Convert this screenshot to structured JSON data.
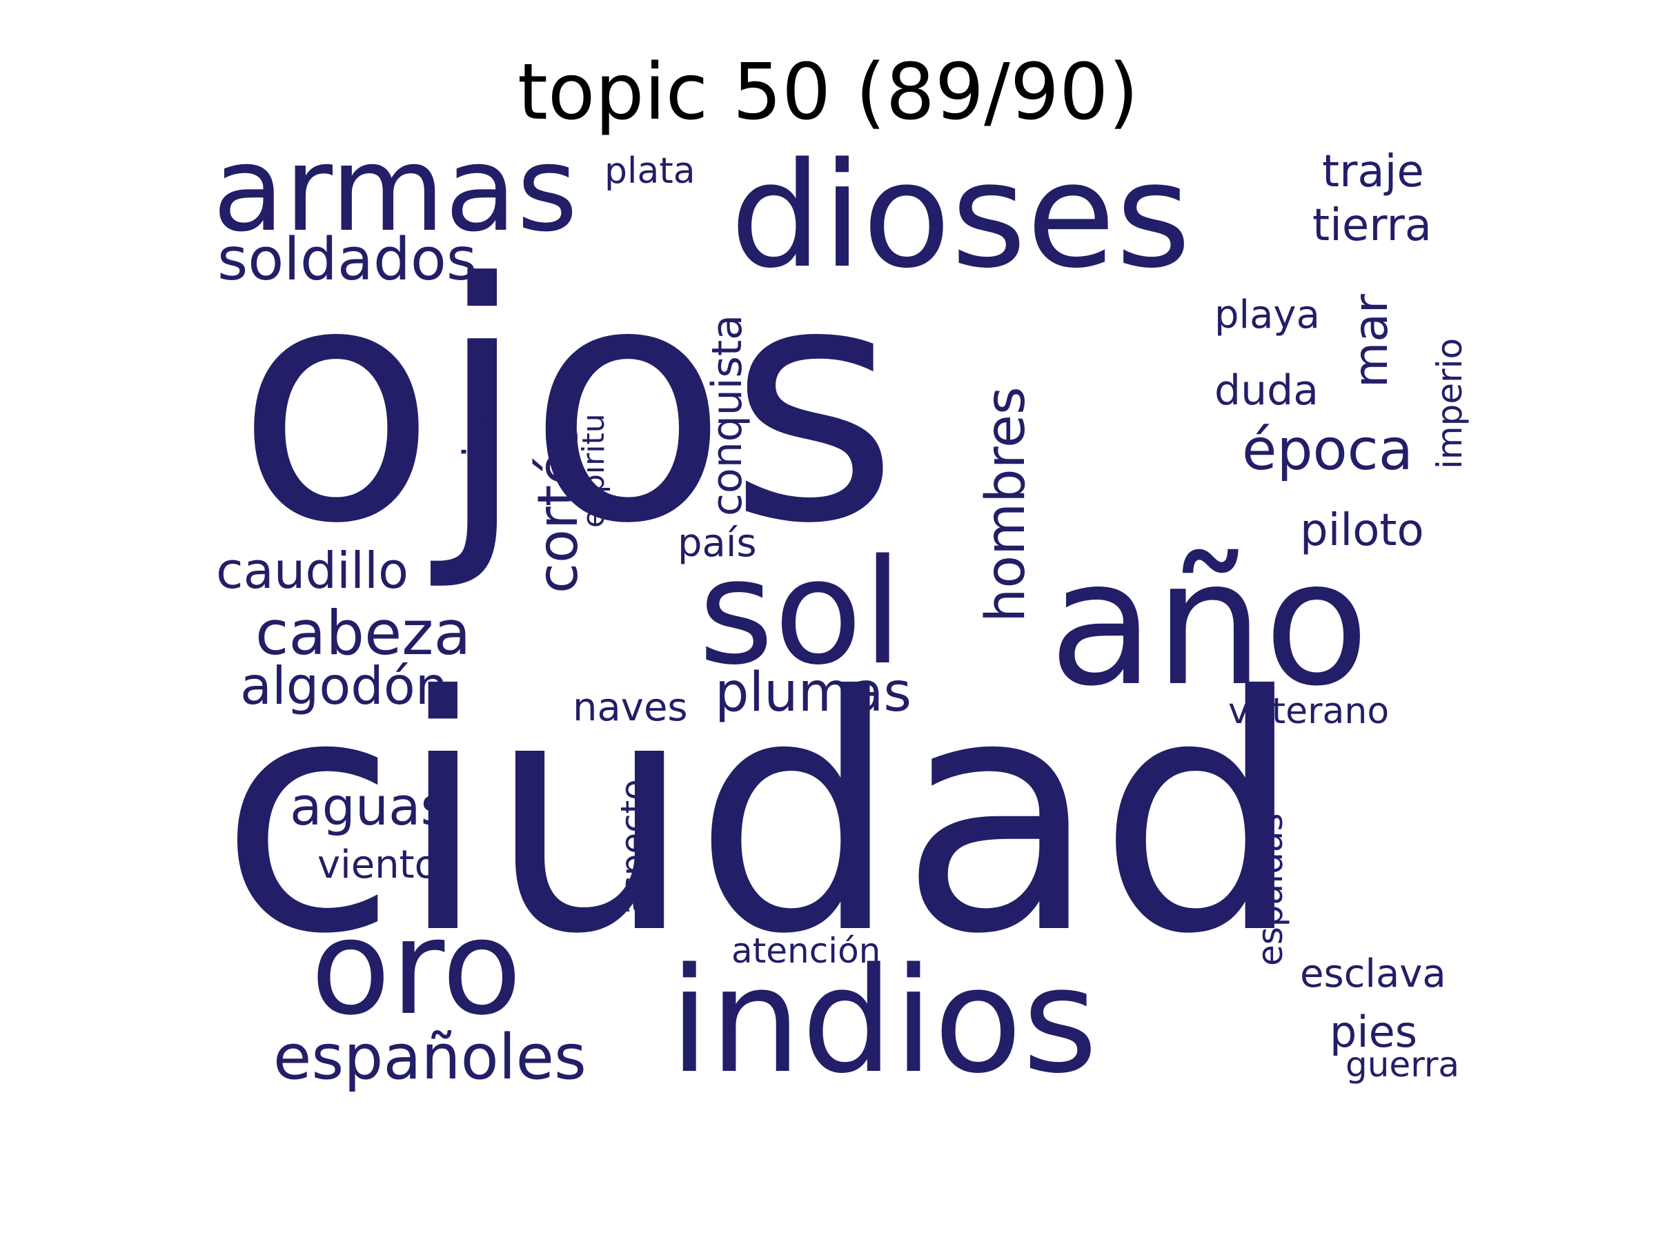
{
  "title": "topic 50 (89/90)",
  "colors": {
    "word": "#221e67",
    "title": "#000000",
    "background": "#ffffff"
  },
  "words": [
    "ojos",
    "ciudad",
    "dioses",
    "armas",
    "indios",
    "año",
    "sol",
    "oro",
    "soldados",
    "españoles",
    "cortés",
    "hombres",
    "cabeza",
    "conquista",
    "época",
    "caudillo",
    "algodón",
    "plumas",
    "aguas",
    "mar",
    "traje",
    "tierra",
    "piloto",
    "vino",
    "playa",
    "duda",
    "esclava",
    "pies",
    "naves",
    "viento",
    "imperio",
    "país",
    "veterano",
    "aspecto",
    "espaldas",
    "espíritu",
    "atención",
    "plata",
    "guerra"
  ]
}
